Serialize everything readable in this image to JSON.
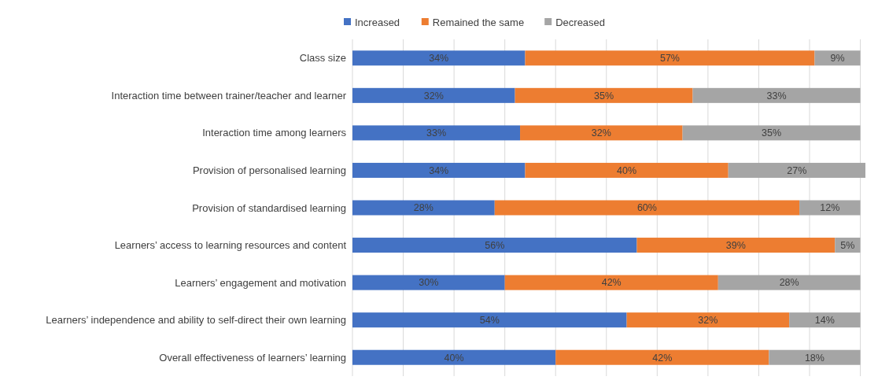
{
  "chart_data": {
    "type": "bar",
    "orientation": "horizontal",
    "stacked": true,
    "categories": [
      "Class size",
      "Interaction time between trainer/teacher and learner",
      "Interaction time among learners",
      "Provision of personalised learning",
      "Provision of standardised learning",
      "Learners’ access to learning resources and content",
      "Learners’ engagement and motivation",
      "Learners’ independence and ability to self-direct their own learning",
      "Overall effectiveness of learners’ learning"
    ],
    "series": [
      {
        "name": "Increased",
        "color": "#4472c4",
        "values": [
          34,
          32,
          33,
          34,
          28,
          56,
          30,
          54,
          40
        ],
        "value_labels": [
          "34%",
          "32%",
          "33%",
          "34%",
          "28%",
          "56%",
          "30%",
          "54%",
          "40%"
        ]
      },
      {
        "name": "Remained the same",
        "color": "#ed7d31",
        "values": [
          57,
          35,
          32,
          40,
          60,
          39,
          42,
          32,
          42
        ],
        "value_labels": [
          "57%",
          "35%",
          "32%",
          "40%",
          "60%",
          "39%",
          "42%",
          "32%",
          "42%"
        ]
      },
      {
        "name": "Decreased",
        "color": "#a5a5a5",
        "values": [
          9,
          33,
          35,
          27,
          12,
          5,
          28,
          14,
          18
        ],
        "value_labels": [
          "9%",
          "33%",
          "35%",
          "27%",
          "12%",
          "5%",
          "28%",
          "14%",
          "18%"
        ]
      }
    ],
    "xlim": [
      0,
      101
    ],
    "xticks": [
      {
        "value": 0,
        "label": null
      },
      {
        "value": 10,
        "label": null
      },
      {
        "value": 20,
        "label": null
      },
      {
        "value": 30,
        "label": null
      },
      {
        "value": 40,
        "label": null
      },
      {
        "value": 50,
        "label": null
      },
      {
        "value": 60,
        "label": null
      },
      {
        "value": 70,
        "label": null
      },
      {
        "value": 80,
        "label": null
      },
      {
        "value": 90,
        "label": null
      },
      {
        "value": 100,
        "label": null
      }
    ],
    "grid": "x",
    "legend": "top",
    "tick_labels": "y"
  }
}
